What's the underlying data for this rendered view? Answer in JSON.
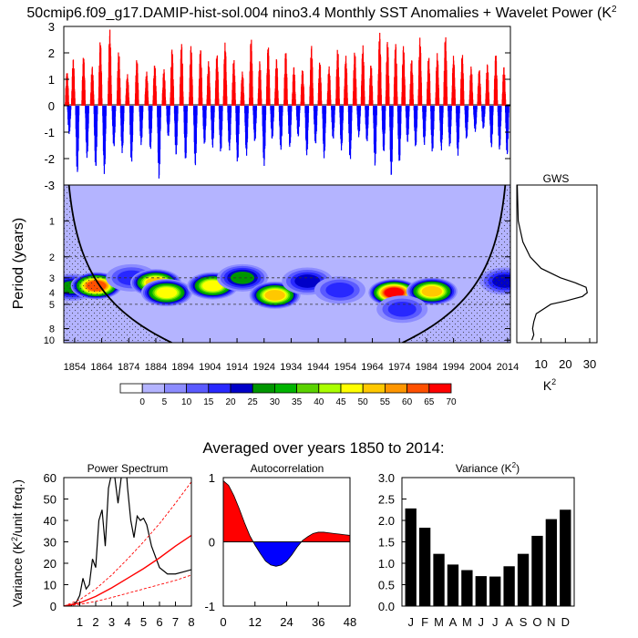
{
  "title": "50cmip6.f09_g17.DAMIP-hist-sol.004 nino3.4 Monthly SST Anomalies + Wavelet Power (K",
  "title_sup": "2",
  "anomaly_panel": {
    "ylim": [
      -3,
      3
    ],
    "yticks": [
      "3",
      "2",
      "1",
      "0",
      "-1",
      "-2",
      "-3"
    ],
    "pos_color": "#ff0000",
    "neg_color": "#0000ff"
  },
  "wavelet_panel": {
    "ylabel": "Period (years)",
    "period_ticks": [
      "1",
      "2",
      "3",
      "4",
      "5",
      "8",
      "10"
    ],
    "year_ticks": [
      "1854",
      "1864",
      "1874",
      "1884",
      "1894",
      "1904",
      "1914",
      "1924",
      "1934",
      "1944",
      "1954",
      "1964",
      "1974",
      "1984",
      "1994",
      "2004",
      "2014"
    ]
  },
  "gws_panel": {
    "title": "GWS",
    "xticks": [
      "10",
      "20",
      "30"
    ],
    "xlabel": "K",
    "xlabel_sup": "2"
  },
  "colorbar": {
    "labels": [
      "0",
      "5",
      "10",
      "15",
      "20",
      "25",
      "30",
      "35",
      "40",
      "45",
      "50",
      "55",
      "60",
      "65",
      "70"
    ],
    "colors": [
      "#ffffff",
      "#b4b4ff",
      "#8c8cff",
      "#5a5aff",
      "#2828ff",
      "#0000c8",
      "#009600",
      "#00b400",
      "#5ad200",
      "#aaff00",
      "#ffff00",
      "#ffc800",
      "#ff9600",
      "#ff5000",
      "#ff0000"
    ]
  },
  "subtitle": "Averaged over years 1850 to 2014:",
  "power_spectrum": {
    "title": "Power Spectrum",
    "ylabel": "Variance (K",
    "ylabel_sup": "2",
    "ylabel_end": "/unit freq.)",
    "xticks": [
      "1",
      "2",
      "3",
      "4",
      "5",
      "6",
      "7",
      "8"
    ],
    "yticks": [
      "0",
      "10",
      "20",
      "30",
      "40",
      "50",
      "60"
    ]
  },
  "autocorrelation": {
    "title": "Autocorrelation",
    "xticks": [
      "0",
      "12",
      "24",
      "36",
      "48"
    ],
    "yticks": [
      "1",
      "0",
      "-1"
    ]
  },
  "variance": {
    "title": "Variance (K",
    "title_sup": "2",
    "title_end": ")",
    "yticks": [
      "3.0",
      "2.5",
      "2.0",
      "1.5",
      "1.0",
      "0.5",
      "0.0"
    ],
    "months": [
      "J",
      "F",
      "M",
      "A",
      "M",
      "J",
      "J",
      "A",
      "S",
      "O",
      "N",
      "D"
    ]
  },
  "chart_data": [
    {
      "type": "bar",
      "name": "anomalies",
      "x_range": [
        1850,
        2015
      ],
      "ylim": [
        -3,
        3
      ],
      "note_values": "monthly SST anomaly peaks (K), approximate",
      "events": [
        {
          "year": 1851.2,
          "value": 1.3
        },
        {
          "year": 1852.0,
          "value": -1.1
        },
        {
          "year": 1853.5,
          "value": 1.8
        },
        {
          "year": 1855.0,
          "value": -2.6
        },
        {
          "year": 1857.3,
          "value": 1.9
        },
        {
          "year": 1858.6,
          "value": -2.0
        },
        {
          "year": 1860.5,
          "value": 1.5
        },
        {
          "year": 1861.8,
          "value": -2.4
        },
        {
          "year": 1863.5,
          "value": 2.5
        },
        {
          "year": 1865.0,
          "value": -2.6
        },
        {
          "year": 1867.0,
          "value": 2.9
        },
        {
          "year": 1868.5,
          "value": -1.6
        },
        {
          "year": 1870.3,
          "value": 2.1
        },
        {
          "year": 1871.6,
          "value": -1.8
        },
        {
          "year": 1873.5,
          "value": 1.2
        },
        {
          "year": 1875.0,
          "value": -2.2
        },
        {
          "year": 1877.0,
          "value": 1.8
        },
        {
          "year": 1878.6,
          "value": -1.5
        },
        {
          "year": 1880.6,
          "value": 1.3
        },
        {
          "year": 1882.0,
          "value": -1.7
        },
        {
          "year": 1883.6,
          "value": 1.6
        },
        {
          "year": 1885.2,
          "value": -2.8
        },
        {
          "year": 1887.0,
          "value": 1.4
        },
        {
          "year": 1888.6,
          "value": -1.2
        },
        {
          "year": 1890.0,
          "value": 2.2
        },
        {
          "year": 1891.5,
          "value": -1.9
        },
        {
          "year": 1893.5,
          "value": 2.4
        },
        {
          "year": 1895.0,
          "value": -2.1
        },
        {
          "year": 1897.0,
          "value": 2.3
        },
        {
          "year": 1898.6,
          "value": -2.3
        },
        {
          "year": 1900.5,
          "value": 2.2
        },
        {
          "year": 1902.0,
          "value": -1.5
        },
        {
          "year": 1903.5,
          "value": 1.7
        },
        {
          "year": 1905.0,
          "value": -1.6
        },
        {
          "year": 1906.6,
          "value": 2.0
        },
        {
          "year": 1908.0,
          "value": -1.8
        },
        {
          "year": 1909.6,
          "value": 2.4
        },
        {
          "year": 1911.2,
          "value": -1.7
        },
        {
          "year": 1912.8,
          "value": 1.8
        },
        {
          "year": 1914.2,
          "value": -2.2
        },
        {
          "year": 1916.0,
          "value": 1.3
        },
        {
          "year": 1917.5,
          "value": -1.9
        },
        {
          "year": 1919.2,
          "value": 2.6
        },
        {
          "year": 1920.6,
          "value": -1.4
        },
        {
          "year": 1922.4,
          "value": 1.7
        },
        {
          "year": 1924.0,
          "value": -2.3
        },
        {
          "year": 1925.5,
          "value": 2.3
        },
        {
          "year": 1927.0,
          "value": -1.3
        },
        {
          "year": 1928.6,
          "value": 1.8
        },
        {
          "year": 1930.2,
          "value": -1.7
        },
        {
          "year": 1932.0,
          "value": 2.1
        },
        {
          "year": 1933.5,
          "value": -1.6
        },
        {
          "year": 1935.0,
          "value": 1.5
        },
        {
          "year": 1936.6,
          "value": -1.2
        },
        {
          "year": 1938.2,
          "value": 1.4
        },
        {
          "year": 1939.8,
          "value": -1.9
        },
        {
          "year": 1941.5,
          "value": 2.3
        },
        {
          "year": 1943.0,
          "value": -1.5
        },
        {
          "year": 1944.6,
          "value": 1.7
        },
        {
          "year": 1946.2,
          "value": -2.0
        },
        {
          "year": 1948.0,
          "value": 1.5
        },
        {
          "year": 1949.5,
          "value": -1.3
        },
        {
          "year": 1951.2,
          "value": 2.2
        },
        {
          "year": 1952.6,
          "value": -1.7
        },
        {
          "year": 1954.2,
          "value": 1.9
        },
        {
          "year": 1955.8,
          "value": -2.1
        },
        {
          "year": 1957.5,
          "value": 2.1
        },
        {
          "year": 1959.0,
          "value": -1.2
        },
        {
          "year": 1960.5,
          "value": 2.3
        },
        {
          "year": 1962.0,
          "value": -1.4
        },
        {
          "year": 1963.5,
          "value": 1.6
        },
        {
          "year": 1965.0,
          "value": -2.3
        },
        {
          "year": 1966.7,
          "value": 2.8
        },
        {
          "year": 1968.2,
          "value": -1.8
        },
        {
          "year": 1969.6,
          "value": 2.5
        },
        {
          "year": 1971.0,
          "value": -2.7
        },
        {
          "year": 1972.6,
          "value": 2.4
        },
        {
          "year": 1974.0,
          "value": -2.2
        },
        {
          "year": 1975.5,
          "value": 2.3
        },
        {
          "year": 1977.0,
          "value": -1.4
        },
        {
          "year": 1978.5,
          "value": 1.8
        },
        {
          "year": 1980.0,
          "value": -1.6
        },
        {
          "year": 1981.6,
          "value": 2.6
        },
        {
          "year": 1983.2,
          "value": -1.5
        },
        {
          "year": 1984.8,
          "value": 1.9
        },
        {
          "year": 1986.2,
          "value": -1.8
        },
        {
          "year": 1988.0,
          "value": 2.0
        },
        {
          "year": 1989.5,
          "value": -1.7
        },
        {
          "year": 1991.0,
          "value": 2.7
        },
        {
          "year": 1992.6,
          "value": -1.6
        },
        {
          "year": 1994.0,
          "value": 1.9
        },
        {
          "year": 1995.6,
          "value": -1.9
        },
        {
          "year": 1997.2,
          "value": 2.0
        },
        {
          "year": 1998.8,
          "value": -1.3
        },
        {
          "year": 2000.5,
          "value": 1.5
        },
        {
          "year": 2002.0,
          "value": -1.0
        },
        {
          "year": 2003.5,
          "value": 1.4
        },
        {
          "year": 2005.0,
          "value": -0.9
        },
        {
          "year": 2006.5,
          "value": 1.6
        },
        {
          "year": 2008.0,
          "value": -1.6
        },
        {
          "year": 2009.6,
          "value": 2.0
        },
        {
          "year": 2011.0,
          "value": -1.7
        },
        {
          "year": 2012.6,
          "value": 1.5
        },
        {
          "year": 2013.8,
          "value": -1.9
        }
      ]
    },
    {
      "type": "heatmap",
      "name": "wavelet_power",
      "x_range": [
        1850,
        2015
      ],
      "y_log_range_years": [
        0.5,
        10.5
      ],
      "levels": [
        0,
        5,
        10,
        15,
        20,
        25,
        30,
        35,
        40,
        45,
        50,
        55,
        60,
        65,
        70
      ],
      "note_values": "approximate blob centres of wavelet power (K^2)",
      "blobs": [
        {
          "year": 1853,
          "period": 3.6,
          "power": 30
        },
        {
          "year": 1862,
          "period": 3.5,
          "power": 66
        },
        {
          "year": 1875,
          "period": 3.0,
          "power": 22
        },
        {
          "year": 1884,
          "period": 3.3,
          "power": 55
        },
        {
          "year": 1888,
          "period": 4.0,
          "power": 50
        },
        {
          "year": 1905,
          "period": 3.5,
          "power": 52
        },
        {
          "year": 1916,
          "period": 3.0,
          "power": 30
        },
        {
          "year": 1928,
          "period": 4.2,
          "power": 58
        },
        {
          "year": 1940,
          "period": 3.2,
          "power": 25
        },
        {
          "year": 1952,
          "period": 3.8,
          "power": 22
        },
        {
          "year": 1972,
          "period": 4.0,
          "power": 70
        },
        {
          "year": 1986,
          "period": 3.9,
          "power": 55
        },
        {
          "year": 1975,
          "period": 5.5,
          "power": 20
        },
        {
          "year": 2013,
          "period": 3.2,
          "power": 25
        }
      ]
    },
    {
      "type": "line",
      "name": "gws",
      "x_label": "K2",
      "xlim": [
        0,
        33
      ],
      "period": [
        0.5,
        1,
        1.5,
        2,
        2.5,
        3,
        3.3,
        3.6,
        4,
        4.3,
        4.7,
        5,
        6,
        7,
        8,
        9,
        10
      ],
      "value": [
        0.2,
        0.6,
        2.5,
        5.5,
        10,
        18,
        24,
        28.5,
        29,
        27,
        20,
        14,
        8,
        7,
        6.5,
        7,
        6.2
      ]
    },
    {
      "type": "line",
      "name": "power_spectrum",
      "title": "Power Spectrum",
      "xlim": [
        0,
        8
      ],
      "ylim": [
        0,
        60
      ],
      "series": [
        {
          "name": "spectrum",
          "x": [
            0,
            0.5,
            0.8,
            1.0,
            1.2,
            1.4,
            1.6,
            1.8,
            2.0,
            2.2,
            2.4,
            2.6,
            2.8,
            3.0,
            3.2,
            3.4,
            3.6,
            3.8,
            4.0,
            4.2,
            4.4,
            4.6,
            4.8,
            5.0,
            5.2,
            5.5,
            6.0,
            6.5,
            7.0,
            7.5,
            8.0
          ],
          "y": [
            0,
            0.5,
            2,
            5,
            13,
            8,
            10,
            22,
            18,
            40,
            45,
            28,
            55,
            62,
            60,
            48,
            60,
            75,
            55,
            40,
            32,
            42,
            40,
            41,
            38,
            28,
            18,
            15,
            15,
            16,
            17
          ]
        },
        {
          "name": "red noise",
          "x": [
            0,
            1,
            2,
            3,
            4,
            5,
            6,
            7,
            8
          ],
          "y": [
            0,
            1.5,
            4.5,
            8.5,
            13,
            17.5,
            22.5,
            28,
            33
          ]
        },
        {
          "name": "upper",
          "x": [
            0,
            1,
            2,
            3,
            4,
            5,
            6,
            7,
            8
          ],
          "y": [
            0,
            3,
            8,
            14.5,
            22,
            30,
            38.5,
            48,
            58
          ]
        },
        {
          "name": "lower",
          "x": [
            0,
            1,
            2,
            3,
            4,
            5,
            6,
            7,
            8
          ],
          "y": [
            0,
            0.8,
            2.2,
            4,
            6,
            8,
            10,
            12,
            14.5
          ]
        }
      ]
    },
    {
      "type": "area",
      "name": "autocorrelation",
      "title": "Autocorrelation",
      "xlim": [
        0,
        48
      ],
      "ylim": [
        -1,
        1
      ],
      "x": [
        0,
        2,
        4,
        6,
        8,
        10,
        12,
        14,
        16,
        18,
        20,
        22,
        24,
        26,
        28,
        30,
        32,
        34,
        36,
        38,
        40,
        42,
        44,
        46,
        48
      ],
      "y": [
        0.95,
        0.88,
        0.72,
        0.52,
        0.3,
        0.1,
        -0.05,
        -0.18,
        -0.3,
        -0.36,
        -0.38,
        -0.36,
        -0.3,
        -0.2,
        -0.08,
        0.02,
        0.08,
        0.13,
        0.15,
        0.15,
        0.14,
        0.13,
        0.12,
        0.11,
        0.1
      ]
    },
    {
      "type": "bar",
      "name": "variance",
      "title": "Variance (K2)",
      "categories": [
        "J",
        "F",
        "M",
        "A",
        "M",
        "J",
        "J",
        "A",
        "S",
        "O",
        "N",
        "D"
      ],
      "values": [
        2.28,
        1.83,
        1.22,
        0.97,
        0.84,
        0.7,
        0.69,
        0.93,
        1.22,
        1.64,
        2.03,
        2.25
      ],
      "ylim": [
        0,
        3.0
      ]
    }
  ]
}
